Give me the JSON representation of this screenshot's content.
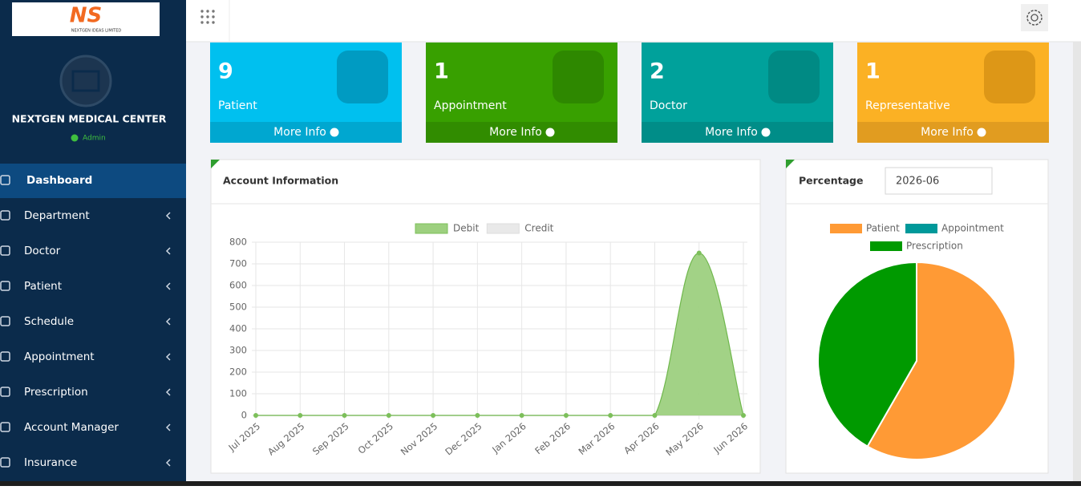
{
  "header": {
    "logo_text": "NS",
    "logo_subtitle": "NEXTGEN IDEAS LIMITED"
  },
  "sidebar": {
    "org_name": "NEXTGEN MEDICAL CENTER",
    "role": "Admin",
    "menu": [
      "Dashboard",
      "Department",
      "Doctor",
      "Patient",
      "Schedule",
      "Appointment",
      "Prescription",
      "Account Manager",
      "Insurance"
    ]
  },
  "stats": [
    {
      "value": 9,
      "label": "Patient",
      "link": "More Info"
    },
    {
      "value": 1,
      "label": "Appointment",
      "link": "More Info"
    },
    {
      "value": 2,
      "label": "Doctor",
      "link": "More Info"
    },
    {
      "value": 1,
      "label": "Representative",
      "link": "More Info"
    }
  ],
  "chart_data": [
    {
      "type": "line",
      "title": "Account Information",
      "categories": [
        "Jul 2025",
        "Aug 2025",
        "Sep 2025",
        "Oct 2025",
        "Nov 2025",
        "Dec 2025",
        "Jan 2026",
        "Feb 2026",
        "Mar 2026",
        "Apr 2026",
        "May 2026",
        "Jun 2026"
      ],
      "series": [
        {
          "name": "Debit",
          "color": "#9dd07f",
          "values": [
            0,
            0,
            0,
            0,
            0,
            0,
            0,
            0,
            0,
            0,
            750,
            0
          ]
        },
        {
          "name": "Credit",
          "color": "#e9e9e9",
          "values": [
            0,
            0,
            0,
            0,
            0,
            0,
            0,
            0,
            0,
            0,
            0,
            0
          ]
        }
      ],
      "ylim": [
        0,
        800
      ],
      "yticks": [
        0,
        100,
        200,
        300,
        400,
        500,
        600,
        700,
        800
      ],
      "grid": true,
      "legend": "top"
    },
    {
      "type": "pie",
      "title": "Percentage",
      "filter": "2026-06",
      "categories": [
        "Patient",
        "Appointment",
        "Prescription"
      ],
      "values": [
        58.3,
        0,
        41.7
      ],
      "colors": [
        "#ff9a35",
        "#00999a",
        "#009a00"
      ],
      "legend": "top"
    }
  ]
}
